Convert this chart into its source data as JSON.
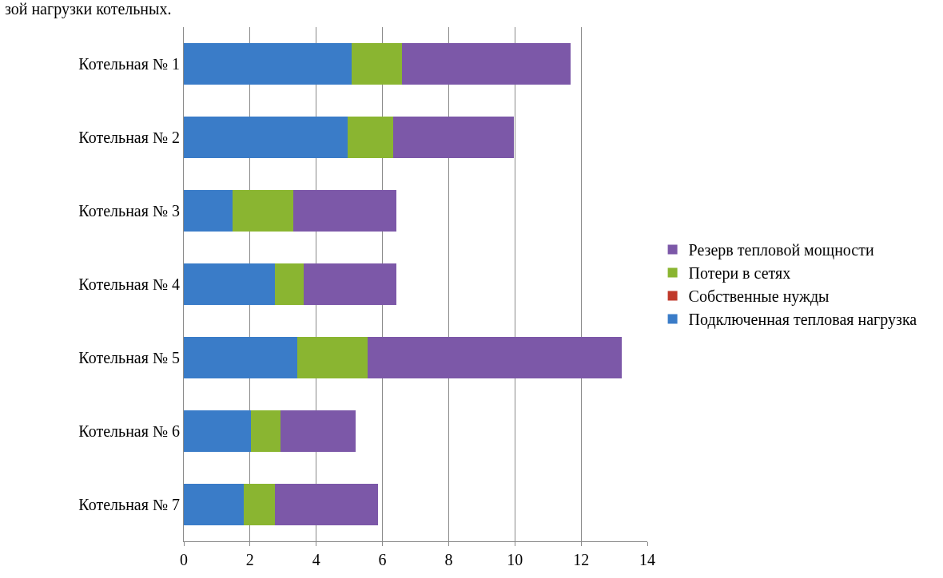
{
  "chart_data": {
    "type": "bar",
    "orientation": "horizontal",
    "stacked": true,
    "title": "зой нагрузки котельных.",
    "categories": [
      "Котельная № 1",
      "Котельная № 2",
      "Котельная № 3",
      "Котельная № 4",
      "Котельная № 5",
      "Котельная № 6",
      "Котельная № 7"
    ],
    "series": [
      {
        "name": "Подключенная тепловая нагрузка",
        "color": "#3a7cc8",
        "values": [
          5.08,
          4.96,
          1.47,
          2.74,
          3.43,
          2.02,
          1.81
        ]
      },
      {
        "name": "Собственные нужды",
        "color": "#c0392b",
        "values": [
          0,
          0,
          0,
          0,
          0,
          0,
          0
        ]
      },
      {
        "name": "Потери в сетях",
        "color": "#8ab531",
        "values": [
          1.5,
          1.37,
          1.84,
          0.89,
          2.11,
          0.89,
          0.93
        ]
      },
      {
        "name": "Резерв тепловой мощности",
        "color": "#7c58a8",
        "values": [
          5.11,
          3.63,
          3.1,
          2.78,
          7.68,
          2.27,
          3.13
        ]
      }
    ],
    "xlim": [
      0,
      14
    ],
    "xticks": [
      0,
      2,
      4,
      6,
      8,
      10,
      12,
      14
    ],
    "grid": "x",
    "legend": "right"
  }
}
